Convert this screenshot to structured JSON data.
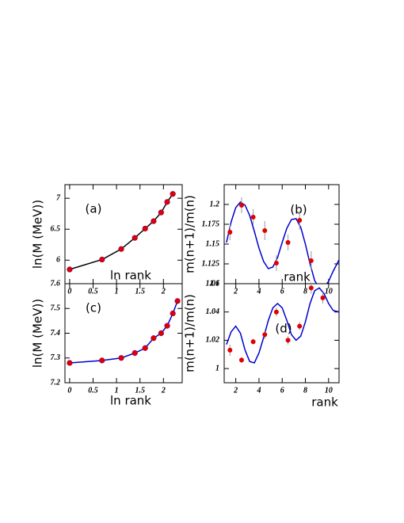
{
  "chart_data": [
    {
      "type": "line",
      "label": "(a)",
      "xlabel": "ln rank",
      "ylabel": "ln(M (MeV))",
      "x": [
        0,
        0.69,
        1.1,
        1.39,
        1.61,
        1.79,
        1.95,
        2.08,
        2.2
      ],
      "values": [
        5.85,
        6.01,
        6.18,
        6.36,
        6.51,
        6.63,
        6.77,
        6.94,
        7.07
      ],
      "line_color": "#000000",
      "marker_color": "#e00000",
      "xlim": [
        -0.1,
        2.4
      ],
      "ylim": [
        5.62,
        7.22
      ],
      "xticks": [
        0,
        0.5,
        1,
        1.5,
        2
      ],
      "yticks": [
        6,
        6.5,
        7
      ]
    },
    {
      "type": "scatter",
      "label": "(b)",
      "xlabel": "rank",
      "ylabel": "m(n+1)/m(n)",
      "x": [
        1.5,
        2.5,
        3.5,
        4.5,
        5.5,
        6.5,
        7.5,
        8.5
      ],
      "values": [
        1.165,
        1.199,
        1.184,
        1.167,
        1.126,
        1.152,
        1.18,
        1.129
      ],
      "errors": [
        0.01,
        0.01,
        0.01,
        0.012,
        0.01,
        0.01,
        0.012,
        0.012
      ],
      "marker_color": "#e00000",
      "error_color": "#999999",
      "fit": {
        "color": "#0000d0",
        "x": [
          1.2,
          1.6,
          2.0,
          2.4,
          2.8,
          3.2,
          3.6,
          4.0,
          4.4,
          4.8,
          5.2,
          5.6,
          6.0,
          6.4,
          6.8,
          7.2,
          7.6,
          8.0,
          8.4,
          8.8,
          9.2,
          9.6,
          10.0,
          10.4,
          10.9
        ],
        "values": [
          1.152,
          1.178,
          1.196,
          1.203,
          1.199,
          1.186,
          1.166,
          1.145,
          1.128,
          1.119,
          1.121,
          1.133,
          1.152,
          1.17,
          1.181,
          1.182,
          1.171,
          1.15,
          1.125,
          1.104,
          1.094,
          1.095,
          1.103,
          1.116,
          1.13
        ]
      },
      "xlim": [
        1,
        10.9
      ],
      "ylim": [
        1.1,
        1.225
      ],
      "xticks": [
        2,
        4,
        6,
        8,
        10
      ],
      "yticks": [
        1.1,
        1.125,
        1.15,
        1.175,
        1.2
      ]
    },
    {
      "type": "line",
      "label": "(c)",
      "xlabel": "ln rank",
      "ylabel": "ln(M (MeV))",
      "x": [
        0,
        0.69,
        1.1,
        1.39,
        1.61,
        1.79,
        1.95,
        2.08,
        2.2,
        2.3
      ],
      "values": [
        7.28,
        7.29,
        7.3,
        7.32,
        7.34,
        7.38,
        7.4,
        7.43,
        7.48,
        7.53
      ],
      "line_color": "#0000d0",
      "marker_color": "#e00000",
      "xlim": [
        -0.1,
        2.4
      ],
      "ylim": [
        7.2,
        7.6
      ],
      "xticks": [
        0,
        0.5,
        1,
        1.5,
        2
      ],
      "yticks": [
        7.2,
        7.3,
        7.4,
        7.5,
        7.6
      ]
    },
    {
      "type": "scatter",
      "label": "(d)",
      "xlabel": "rank",
      "ylabel": "m(n+1)/m(n)",
      "x": [
        1.5,
        2.5,
        3.5,
        4.5,
        5.5,
        6.5,
        7.5,
        8.5,
        9.5
      ],
      "values": [
        1.013,
        1.006,
        1.019,
        1.024,
        1.04,
        1.02,
        1.03,
        1.057,
        1.05
      ],
      "errors": [
        0.004,
        0.002,
        0.002,
        0.003,
        0.003,
        0.003,
        0.003,
        0.004,
        0.004
      ],
      "marker_color": "#e00000",
      "error_color": "#999999",
      "fit": {
        "color": "#0000d0",
        "x": [
          1.2,
          1.6,
          2.0,
          2.4,
          2.8,
          3.2,
          3.6,
          4.0,
          4.4,
          4.8,
          5.2,
          5.6,
          6.0,
          6.4,
          6.8,
          7.2,
          7.6,
          8.0,
          8.4,
          8.8,
          9.2,
          9.6,
          10.0,
          10.4,
          10.9
        ],
        "values": [
          1.017,
          1.026,
          1.03,
          1.025,
          1.013,
          1.005,
          1.004,
          1.011,
          1.022,
          1.034,
          1.043,
          1.046,
          1.043,
          1.034,
          1.024,
          1.02,
          1.023,
          1.033,
          1.046,
          1.055,
          1.057,
          1.053,
          1.046,
          1.041,
          1.04
        ]
      },
      "xlim": [
        1,
        10.9
      ],
      "ylim": [
        0.99,
        1.06
      ],
      "xticks": [
        2,
        4,
        6,
        8,
        10
      ],
      "yticks": [
        1,
        1.02,
        1.04,
        1.06
      ]
    }
  ]
}
